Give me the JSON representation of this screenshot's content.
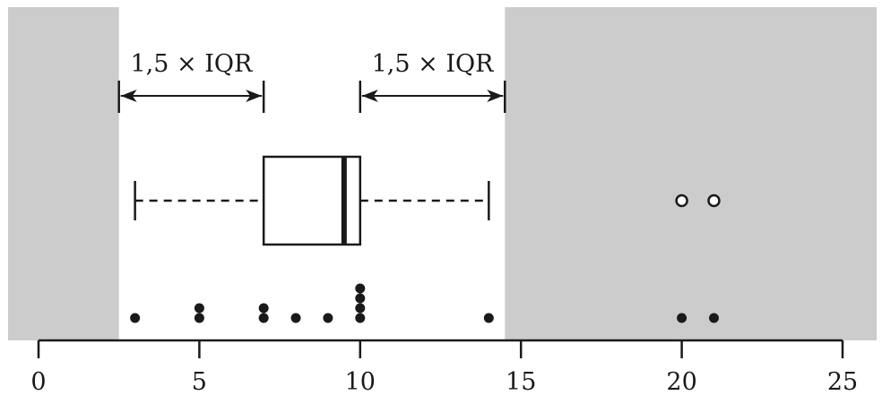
{
  "chart_data": {
    "type": "boxplot",
    "axis": {
      "ticks": [
        0,
        5,
        10,
        15,
        20,
        25
      ],
      "xlim": [
        0,
        25
      ]
    },
    "box": {
      "q1": 7,
      "median": 9.5,
      "q3": 10,
      "whisker_low": 3,
      "whisker_high": 14,
      "outliers": [
        20,
        21
      ]
    },
    "fences": {
      "lower": 2.5,
      "upper": 14.5,
      "label_left": "1,5 × IQR",
      "label_right": "1,5 × IQR"
    },
    "points": [
      3,
      5,
      5,
      7,
      7,
      8,
      9,
      10,
      10,
      10,
      10,
      14,
      20,
      21
    ],
    "shading_color": "#cccccc",
    "ink_color": "#1a1a1a"
  }
}
